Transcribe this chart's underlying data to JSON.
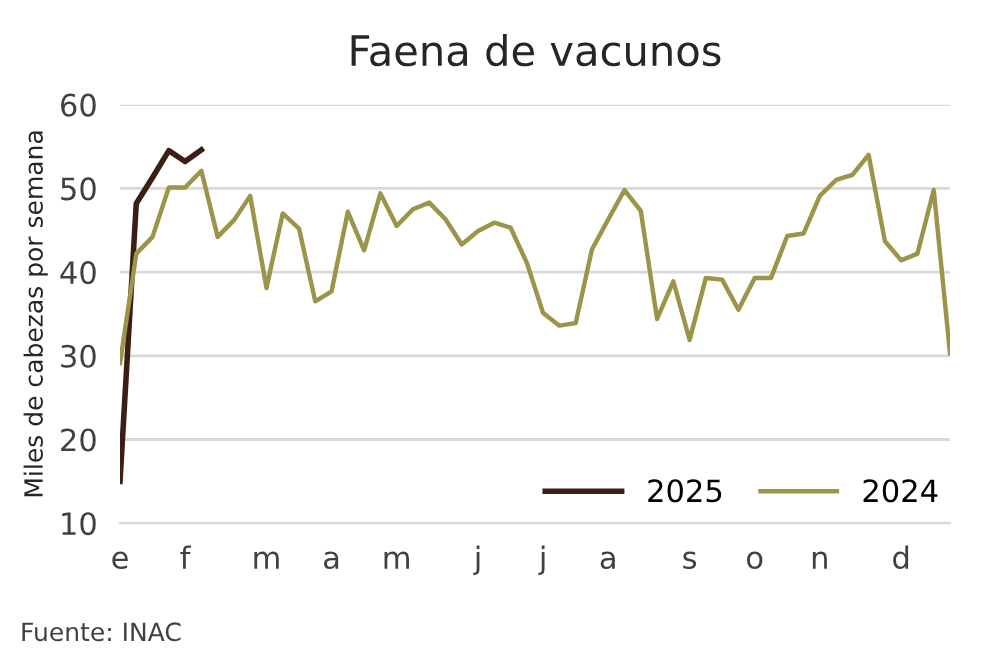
{
  "chart_data": {
    "type": "line",
    "title": "Faena de vacunos",
    "ylabel": "Miles de cabezas por semana",
    "categories": [
      "e",
      null,
      null,
      null,
      "f",
      null,
      null,
      null,
      null,
      "m",
      null,
      null,
      null,
      "a",
      null,
      null,
      null,
      "m",
      null,
      null,
      null,
      null,
      "j",
      null,
      null,
      null,
      "j",
      null,
      null,
      null,
      "a",
      null,
      null,
      null,
      null,
      "s",
      null,
      null,
      null,
      "o",
      null,
      null,
      null,
      "n",
      null,
      null,
      null,
      null,
      "d",
      null,
      null,
      null
    ],
    "series": [
      {
        "name": "2025",
        "color": "#3b1f14",
        "values": [
          15.0,
          48.2,
          51.3,
          54.5,
          53.2,
          54.6,
          null,
          null,
          null,
          null,
          null,
          null,
          null,
          null,
          null,
          null,
          null,
          null,
          null,
          null,
          null,
          null,
          null,
          null,
          null,
          null,
          null,
          null,
          null,
          null,
          null,
          null,
          null,
          null,
          null,
          null,
          null,
          null,
          null,
          null,
          null,
          null,
          null,
          null,
          null,
          null,
          null,
          null,
          null,
          null,
          null,
          null
        ]
      },
      {
        "name": "2024",
        "color": "#9c9449",
        "values": [
          29.1,
          42.2,
          44.2,
          50.1,
          50.1,
          52.1,
          44.2,
          46.2,
          49.1,
          38.1,
          47.0,
          45.2,
          36.5,
          37.7,
          47.2,
          42.6,
          49.4,
          45.5,
          47.5,
          48.3,
          46.3,
          43.3,
          44.9,
          45.9,
          45.3,
          41.1,
          35.1,
          33.6,
          33.9,
          42.7,
          46.3,
          49.8,
          47.3,
          34.4,
          38.9,
          31.9,
          39.3,
          39.1,
          35.5,
          39.3,
          39.3,
          44.3,
          44.6,
          49.1,
          51.0,
          51.6,
          54.0,
          43.7,
          41.4,
          42.2,
          49.8,
          30.3
        ]
      }
    ],
    "ylim": [
      10,
      60
    ],
    "yticks": [
      10,
      20,
      30,
      40,
      50,
      60
    ],
    "grid": "y",
    "legend": "bottom right",
    "marker": "none",
    "line_style": "solid",
    "annotations": [
      "Fuente: INAC"
    ]
  }
}
